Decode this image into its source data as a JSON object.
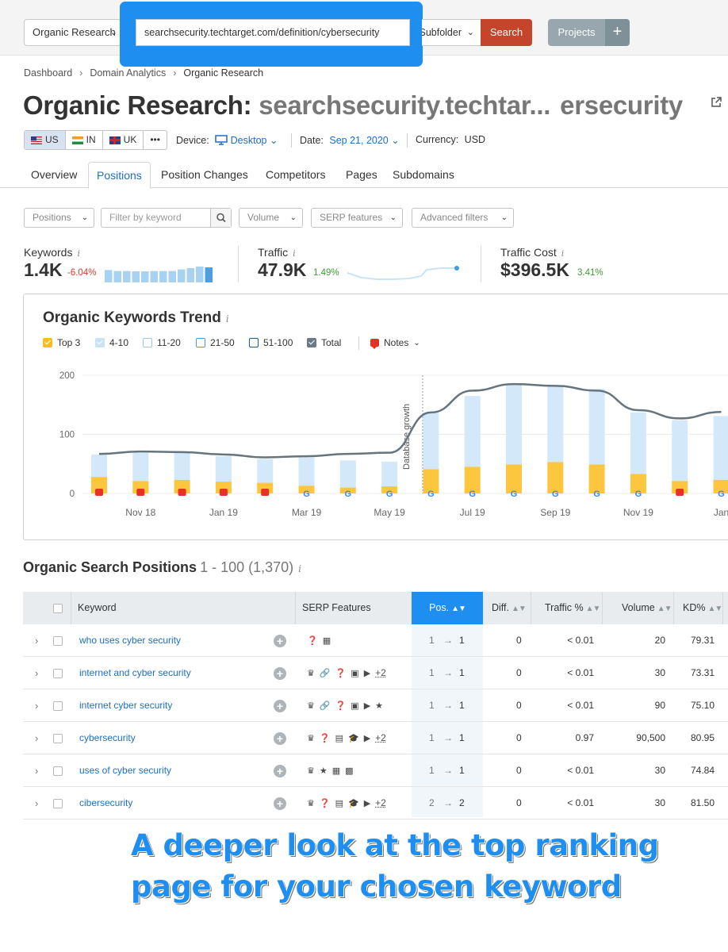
{
  "topbar": {
    "db_select": "Organic Research",
    "url_value": "searchsecurity.techtarget.com/definition/cybersecurity",
    "scope_select": "Subfolder",
    "search_label": "Search",
    "projects_label": "Projects",
    "plus_label": "+"
  },
  "breadcrumb": [
    "Dashboard",
    "Domain Analytics",
    "Organic Research"
  ],
  "title": {
    "prefix": "Organic Research:",
    "domain_start": "searchsecurity.techtar...",
    "domain_end": "ersecurity"
  },
  "countries": [
    {
      "code": "US",
      "active": true
    },
    {
      "code": "IN",
      "active": false
    },
    {
      "code": "UK",
      "active": false
    },
    {
      "code": "•••",
      "active": false
    }
  ],
  "filters_meta": {
    "device_label": "Device:",
    "device_value": "Desktop",
    "date_label": "Date:",
    "date_value": "Sep 21, 2020",
    "currency_label": "Currency:",
    "currency_value": "USD"
  },
  "tabs": [
    "Overview",
    "Positions",
    "Position Changes",
    "Competitors",
    "Pages",
    "Subdomains"
  ],
  "filters": {
    "positions": "Positions",
    "keyword_placeholder": "Filter by keyword",
    "volume": "Volume",
    "serp": "SERP features",
    "advanced": "Advanced filters"
  },
  "stats": {
    "keywords": {
      "label": "Keywords",
      "value": "1.4K",
      "change": "-6.04%"
    },
    "traffic": {
      "label": "Traffic",
      "value": "47.9K",
      "change": "1.49%"
    },
    "cost": {
      "label": "Traffic Cost",
      "value": "$396.5K",
      "change": "3.41%"
    },
    "keyword_bars": [
      0.78,
      0.72,
      0.72,
      0.7,
      0.7,
      0.72,
      0.72,
      0.72,
      0.82,
      0.9,
      1.0,
      0.95
    ]
  },
  "chart": {
    "title": "Organic Keywords Trend",
    "legend": [
      {
        "label": "Top 3",
        "color": "#f5bd2c"
      },
      {
        "label": "4-10",
        "color": "#c9e2f5"
      },
      {
        "label": "11-20",
        "color": "#ffffff"
      },
      {
        "label": "21-50",
        "color": "#ffffff"
      },
      {
        "label": "51-100",
        "color": "#ffffff"
      },
      {
        "label": "Total",
        "color": "#6b7b85"
      }
    ],
    "notes_label": "Notes",
    "annotation": "Database growth",
    "colors": {
      "top3": "#fcc63e",
      "r410": "#d3e9f9",
      "total": "#66757d",
      "note": "#e53224",
      "google_blue": "#4285f4"
    }
  },
  "chart_data": {
    "type": "bar",
    "title": "Organic Keywords Trend",
    "ylim": [
      0,
      200
    ],
    "yticks": [
      "0",
      "100",
      "200"
    ],
    "xticks": [
      "Nov 18",
      "Jan 19",
      "Mar 19",
      "May 19",
      "Jul 19",
      "Sep 19",
      "Nov 19",
      "Jan"
    ],
    "series": [
      {
        "name": "Top 3",
        "values": [
          28,
          21,
          23,
          20,
          18,
          13,
          10,
          12,
          41,
          45,
          49,
          53,
          49,
          33,
          21,
          23
        ]
      },
      {
        "name": "4-10",
        "values": [
          38,
          48,
          46,
          43,
          40,
          48,
          46,
          42,
          96,
          120,
          135,
          128,
          128,
          104,
          103,
          108
        ]
      },
      {
        "name": "Total",
        "values": [
          67,
          71,
          70,
          66,
          61,
          63,
          67,
          69,
          137,
          174,
          185,
          182,
          174,
          141,
          127,
          138
        ]
      }
    ],
    "markers": [
      "note",
      "note",
      "note",
      "note",
      "note",
      "google",
      "google",
      "google",
      "google",
      "google",
      "google",
      "google",
      "google",
      "google",
      "note",
      "google"
    ]
  },
  "positions": {
    "title": "Organic Search Positions",
    "range": "1 - 100 (1,370)",
    "headers": {
      "keyword": "Keyword",
      "serp": "SERP Features",
      "pos": "Pos.",
      "diff": "Diff.",
      "traffic": "Traffic %",
      "volume": "Volume",
      "kd": "KD%"
    },
    "rows": [
      {
        "keyword": "who uses cyber security",
        "icons": [
          "❓",
          "▦"
        ],
        "more": "",
        "from": "1",
        "to": "1",
        "diff": "0",
        "traffic": "< 0.01",
        "volume": "20",
        "kd": "79.31"
      },
      {
        "keyword": "internet and cyber security",
        "icons": [
          "♛",
          "🔗",
          "❓",
          "▣",
          "▶"
        ],
        "more": "+2",
        "from": "1",
        "to": "1",
        "diff": "0",
        "traffic": "< 0.01",
        "volume": "30",
        "kd": "73.31"
      },
      {
        "keyword": "internet cyber security",
        "icons": [
          "♛",
          "🔗",
          "❓",
          "▣",
          "▶",
          "★"
        ],
        "more": "",
        "from": "1",
        "to": "1",
        "diff": "0",
        "traffic": "< 0.01",
        "volume": "90",
        "kd": "75.10"
      },
      {
        "keyword": "cybersecurity",
        "icons": [
          "♛",
          "❓",
          "▤",
          "🎓",
          "▶"
        ],
        "more": "+2",
        "from": "1",
        "to": "1",
        "diff": "0",
        "traffic": "0.97",
        "volume": "90,500",
        "kd": "80.95"
      },
      {
        "keyword": "uses of cyber security",
        "icons": [
          "♛",
          "★",
          "▦",
          "▩"
        ],
        "more": "",
        "from": "1",
        "to": "1",
        "diff": "0",
        "traffic": "< 0.01",
        "volume": "30",
        "kd": "74.84"
      },
      {
        "keyword": "cibersecurity",
        "icons": [
          "♛",
          "❓",
          "▤",
          "🎓",
          "▶"
        ],
        "more": "+2",
        "from": "2",
        "to": "2",
        "diff": "0",
        "traffic": "< 0.01",
        "volume": "30",
        "kd": "81.50"
      }
    ]
  },
  "caption": {
    "line1": "A deeper look at the top ranking",
    "line2": "page for your chosen keyword"
  }
}
